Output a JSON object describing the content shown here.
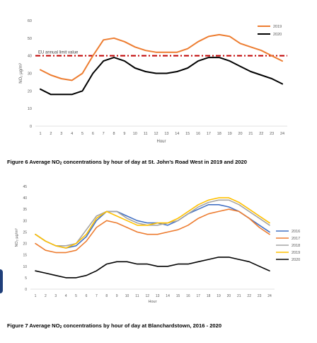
{
  "chart_data": [
    {
      "type": "line",
      "title": "",
      "xlabel": "Hour",
      "ylabel": "NO₂ µg/m³",
      "x": [
        1,
        2,
        3,
        4,
        5,
        6,
        7,
        8,
        9,
        10,
        11,
        12,
        13,
        14,
        15,
        16,
        17,
        18,
        19,
        20,
        21,
        22,
        23,
        24
      ],
      "ylim": [
        0,
        60
      ],
      "yticks": [
        0,
        10,
        20,
        30,
        40,
        50,
        60
      ],
      "grid": false,
      "legend": "top-right",
      "series": [
        {
          "name": "2019",
          "color": "#ed7d31",
          "values": [
            32,
            29,
            27,
            26,
            30,
            40,
            49,
            50,
            48,
            45,
            43,
            42,
            42,
            42,
            44,
            48,
            51,
            52,
            51,
            47,
            45,
            43,
            40,
            37
          ]
        },
        {
          "name": "2020",
          "color": "#000000",
          "values": [
            21,
            18,
            18,
            18,
            20,
            30,
            37,
            39,
            37,
            33,
            31,
            30,
            30,
            31,
            33,
            37,
            39,
            39,
            37,
            34,
            31,
            29,
            27,
            24
          ]
        }
      ],
      "reference_line": {
        "label": "EU annual limit value",
        "value": 40,
        "color": "#c00000"
      }
    },
    {
      "type": "line",
      "title": "",
      "xlabel": "Hour",
      "ylabel": "NO₂ µg/m³",
      "x": [
        1,
        2,
        3,
        4,
        5,
        6,
        7,
        8,
        9,
        10,
        11,
        12,
        13,
        14,
        15,
        16,
        17,
        18,
        19,
        20,
        21,
        22,
        23,
        24
      ],
      "ylim": [
        0,
        45
      ],
      "yticks": [
        0,
        5,
        10,
        15,
        20,
        25,
        30,
        35,
        40,
        45
      ],
      "grid": false,
      "legend": "right",
      "series": [
        {
          "name": "2016",
          "color": "#4472c4",
          "values": [
            24,
            21,
            19,
            18,
            19,
            23,
            30,
            34,
            34,
            32,
            30,
            29,
            29,
            28,
            30,
            33,
            35,
            37,
            37,
            36,
            34,
            31,
            28,
            25
          ]
        },
        {
          "name": "2017",
          "color": "#ed7d31",
          "values": [
            20,
            17,
            16,
            16,
            17,
            21,
            27,
            30,
            29,
            27,
            25,
            24,
            24,
            25,
            26,
            28,
            31,
            33,
            34,
            35,
            34,
            31,
            27,
            24
          ]
        },
        {
          "name": "2018",
          "color": "#a5a5a5",
          "values": [
            24,
            21,
            19,
            19,
            20,
            26,
            32,
            34,
            34,
            31,
            29,
            28,
            28,
            29,
            30,
            33,
            36,
            38,
            39,
            39,
            37,
            34,
            31,
            28
          ]
        },
        {
          "name": "2019",
          "color": "#ffc000",
          "values": [
            24,
            21,
            19,
            18,
            20,
            24,
            31,
            34,
            32,
            30,
            28,
            28,
            29,
            29,
            31,
            34,
            37,
            39,
            40,
            40,
            38,
            35,
            32,
            29
          ]
        },
        {
          "name": "2020",
          "color": "#000000",
          "values": [
            8,
            7,
            6,
            5,
            5,
            6,
            8,
            11,
            12,
            12,
            11,
            11,
            10,
            10,
            11,
            11,
            12,
            13,
            14,
            14,
            13,
            12,
            10,
            8
          ]
        }
      ]
    }
  ],
  "captions": {
    "fig6_pre": "Figure 6 Average NO",
    "fig6_sub": "2",
    "fig6_post": " concentrations by hour of day at St. John’s Road West in 2019 and 2020",
    "fig7_pre": "Figure 7 Average NO",
    "fig7_sub": "2",
    "fig7_post": " concentrations by hour of day at Blanchardstown, 2016 - 2020"
  }
}
